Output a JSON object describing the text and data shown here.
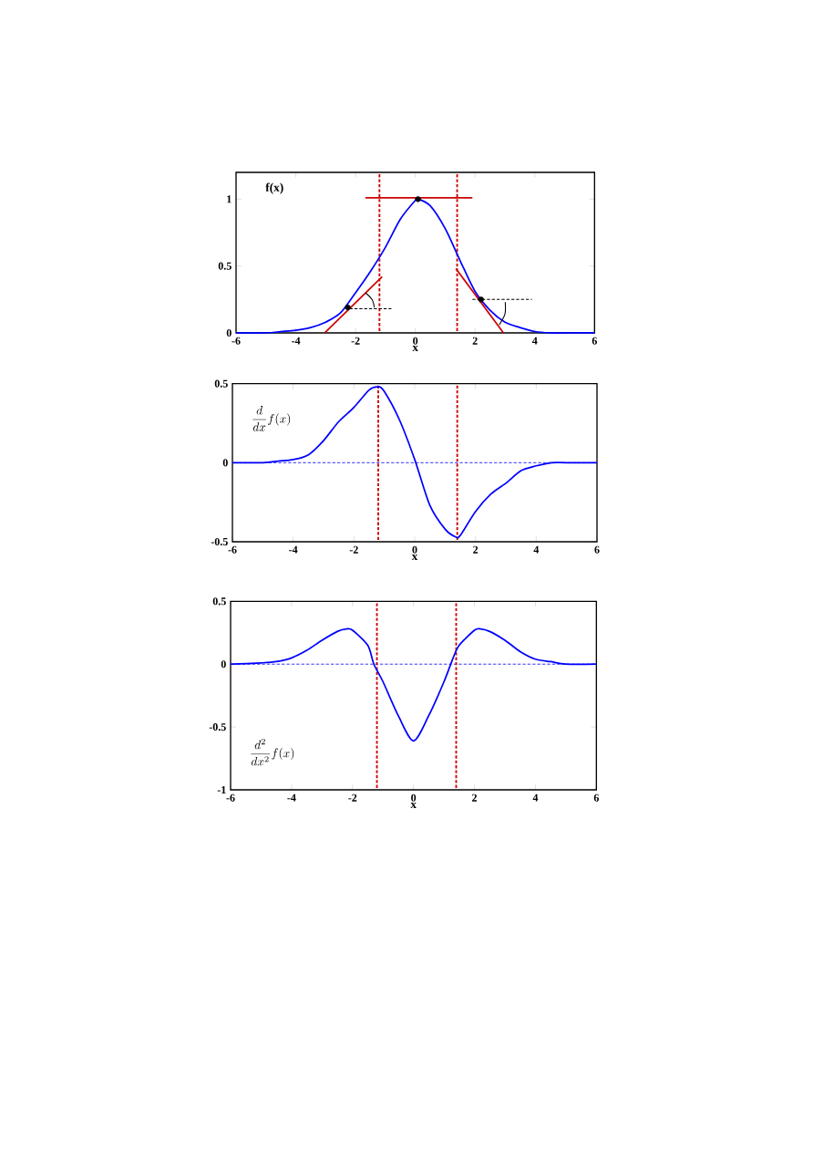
{
  "chart_data": [
    {
      "type": "line",
      "ylabel": "f(x)",
      "xlabel": "x",
      "xlim": [
        -6,
        6
      ],
      "ylim": [
        0,
        1.2
      ],
      "xticks": [
        -6,
        -4,
        -2,
        0,
        2,
        4,
        6
      ],
      "yticks": [
        0,
        0.5,
        1
      ],
      "series": [
        {
          "color": "#0000ff",
          "x": [
            -6,
            -5,
            -4.5,
            -4,
            -3.5,
            -3,
            -2.5,
            -2,
            -1.5,
            -1,
            -0.5,
            0,
            0.1,
            0.5,
            1,
            1.5,
            2,
            2.5,
            3,
            3.5,
            4,
            4.5,
            5,
            6
          ],
          "values": [
            0,
            0,
            0.01,
            0.02,
            0.04,
            0.08,
            0.15,
            0.3,
            0.46,
            0.64,
            0.85,
            0.99,
            1.0,
            0.95,
            0.78,
            0.54,
            0.31,
            0.17,
            0.08,
            0.04,
            0.01,
            0,
            0,
            0
          ]
        },
        {
          "type": "line",
          "color": "#cc0000",
          "x": [
            -1.67,
            1.91
          ],
          "values": [
            1.01,
            1.01
          ]
        },
        {
          "type": "line",
          "color": "#cc0000",
          "x": [
            -3.03,
            -1.11
          ],
          "values": [
            0,
            0.42
          ]
        },
        {
          "type": "line",
          "color": "#cc0000",
          "x": [
            1.36,
            2.95
          ],
          "values": [
            0.48,
            0
          ]
        },
        {
          "type": "line",
          "color": "#000000",
          "line_style": "dashed",
          "x": [
            -2.26,
            -0.8
          ],
          "values": [
            0.18,
            0.18
          ]
        },
        {
          "type": "line",
          "color": "#000000",
          "line_style": "dashed",
          "x": [
            1.85,
            3.9
          ],
          "values": [
            0.25,
            0.25
          ]
        },
        {
          "type": "line",
          "color": "#000000",
          "x": [
            -1.37,
            -1.45,
            -1.67
          ],
          "values": [
            0.19,
            0.25,
            0.3
          ]
        },
        {
          "type": "line",
          "color": "#000000",
          "x": [
            3.01,
            3.0,
            2.81
          ],
          "values": [
            0.23,
            0.14,
            0.06
          ]
        },
        {
          "type": "scatter",
          "color": "#000000",
          "x": [
            -2.26,
            0.09,
            2.2
          ],
          "values": [
            0.19,
            1.0,
            0.25
          ]
        }
      ],
      "ref_lines": [
        {
          "axis": "x",
          "value": -1.2,
          "color": "#cc0000",
          "line_style": "dashed"
        },
        {
          "axis": "x",
          "value": 1.4,
          "color": "#cc0000",
          "line_style": "dashed"
        }
      ]
    },
    {
      "type": "line",
      "ylabel": "\\frac{d}{dx}f(x)",
      "xlabel": "x",
      "xlim": [
        -6,
        6
      ],
      "ylim": [
        -0.5,
        0.5
      ],
      "xticks": [
        -6,
        -4,
        -2,
        0,
        2,
        4,
        6
      ],
      "yticks": [
        -0.5,
        0,
        0.5
      ],
      "series": [
        {
          "color": "#0000ff",
          "x": [
            -6,
            -5,
            -4.5,
            -4,
            -3.5,
            -3,
            -2.5,
            -2,
            -1.5,
            -1.2,
            -1,
            -0.5,
            0,
            0.5,
            1,
            1.35,
            1.5,
            2,
            2.5,
            3,
            3.5,
            4,
            4.5,
            5,
            6
          ],
          "values": [
            0,
            0,
            0.01,
            0.02,
            0.05,
            0.14,
            0.26,
            0.35,
            0.46,
            0.48,
            0.45,
            0.27,
            0.02,
            -0.27,
            -0.42,
            -0.47,
            -0.46,
            -0.31,
            -0.2,
            -0.13,
            -0.05,
            -0.02,
            0,
            0,
            0
          ]
        }
      ],
      "ref_lines": [
        {
          "axis": "y",
          "value": 0,
          "color": "#0000ff",
          "line_style": "dashed"
        },
        {
          "axis": "x",
          "value": -1.2,
          "color": "#cc0000",
          "line_style": "dashed"
        },
        {
          "axis": "x",
          "value": 1.4,
          "color": "#cc0000",
          "line_style": "dashed"
        }
      ]
    },
    {
      "type": "line",
      "ylabel": "\\frac{d^2}{dx^2}f(x)",
      "xlabel": "x",
      "xlim": [
        -6,
        6
      ],
      "ylim": [
        -1,
        0.5
      ],
      "xticks": [
        -6,
        -4,
        -2,
        0,
        2,
        4,
        6
      ],
      "yticks": [
        -1,
        -0.5,
        0,
        0.5
      ],
      "series": [
        {
          "color": "#0000ff",
          "x": [
            -6,
            -5,
            -4.5,
            -4,
            -3.5,
            -3,
            -2.5,
            -2.2,
            -2,
            -1.5,
            -1.3,
            -1,
            -0.5,
            0,
            0.5,
            1,
            1.3,
            1.5,
            2,
            2.2,
            2.5,
            3,
            3.5,
            4,
            4.5,
            5,
            6
          ],
          "values": [
            0,
            0.01,
            0.02,
            0.05,
            0.11,
            0.19,
            0.26,
            0.28,
            0.27,
            0.15,
            0,
            -0.14,
            -0.41,
            -0.61,
            -0.41,
            -0.14,
            0.05,
            0.15,
            0.27,
            0.28,
            0.26,
            0.19,
            0.1,
            0.04,
            0.02,
            0,
            0
          ]
        }
      ],
      "ref_lines": [
        {
          "axis": "y",
          "value": 0,
          "color": "#0000ff",
          "line_style": "dashed"
        },
        {
          "axis": "x",
          "value": -1.2,
          "color": "#cc0000",
          "line_style": "dashed"
        },
        {
          "axis": "x",
          "value": 1.4,
          "color": "#cc0000",
          "line_style": "dashed"
        }
      ]
    }
  ]
}
